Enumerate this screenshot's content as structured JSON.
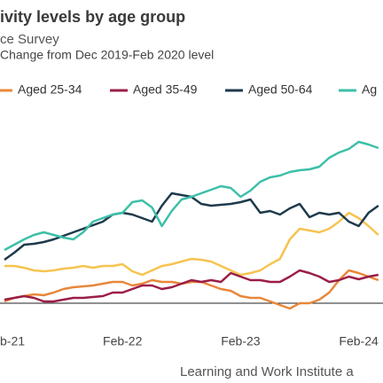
{
  "chart_data": {
    "type": "line",
    "title": "ivity levels by age group",
    "subtitle": "ce Survey",
    "y_label": "Change from Dec 2019-Feb 2020 level",
    "source": "Learning and Work Institute a",
    "categories": [
      "b-21",
      null,
      null,
      null,
      null,
      null,
      null,
      null,
      null,
      null,
      null,
      null,
      "Feb-22",
      null,
      null,
      null,
      null,
      null,
      null,
      null,
      null,
      null,
      null,
      null,
      "Feb-23",
      null,
      null,
      null,
      null,
      null,
      null,
      null,
      null,
      null,
      null,
      null,
      "Feb-24",
      null,
      null
    ],
    "ylim": [
      -14,
      121
    ],
    "yticks": [
      0
    ],
    "series": [
      {
        "name": "Aged 25-34",
        "color": "#e8873a",
        "values": [
          1,
          3,
          4,
          5,
          4.5,
          6,
          8,
          9,
          9.5,
          10,
          11,
          12,
          12,
          10,
          11,
          13,
          12,
          12,
          11,
          12,
          12,
          10,
          8,
          7,
          4,
          3,
          3,
          1,
          -1,
          -3,
          0,
          0,
          2,
          6,
          13,
          18.5,
          17,
          15,
          13
        ]
      },
      {
        "name": "Aged 35-49",
        "color": "#9b1e47",
        "values": [
          2,
          3,
          4,
          3,
          1,
          1,
          2,
          3,
          3,
          3.5,
          4,
          6,
          6,
          8,
          10,
          10,
          8,
          9,
          11,
          13,
          12,
          13,
          12,
          17,
          15,
          13,
          13,
          12,
          12,
          15,
          18.5,
          17,
          15,
          12,
          13,
          15,
          13.5,
          15,
          16
        ]
      },
      {
        "name": "Aged 50-64",
        "color": "#1e3a4c",
        "values": [
          24.5,
          28.5,
          33,
          33.5,
          34.5,
          36,
          38,
          40,
          42,
          44,
          46,
          50,
          51,
          50,
          48,
          46,
          55,
          62,
          61,
          60,
          56,
          55,
          55.5,
          56,
          57,
          58.5,
          51,
          52,
          50,
          53.5,
          56,
          48.5,
          51,
          50,
          51,
          46,
          43.5,
          51,
          55
        ]
      },
      {
        "name": "Ag",
        "color": "#3dbfa8",
        "values": [
          30,
          33,
          36,
          38.5,
          40,
          38.5,
          37,
          36,
          40,
          46,
          48,
          50,
          51,
          57,
          58,
          54,
          43.5,
          52,
          58.5,
          60,
          62,
          64,
          66,
          65,
          60,
          63.5,
          68.5,
          71,
          72,
          74,
          75,
          75.5,
          77,
          82,
          85,
          87,
          91,
          89.5,
          87.5
        ]
      },
      {
        "color": "#f5c451",
        "values": [
          21,
          21,
          20,
          18.5,
          18,
          18.5,
          19.5,
          20,
          21,
          20,
          21,
          21,
          22,
          18,
          16,
          18.5,
          21,
          22,
          23.5,
          25,
          24.5,
          23.5,
          21,
          18.5,
          16,
          17,
          18.5,
          22,
          25,
          36,
          42,
          41,
          40,
          42,
          46,
          51,
          48,
          43.5,
          38.5
        ]
      }
    ]
  }
}
